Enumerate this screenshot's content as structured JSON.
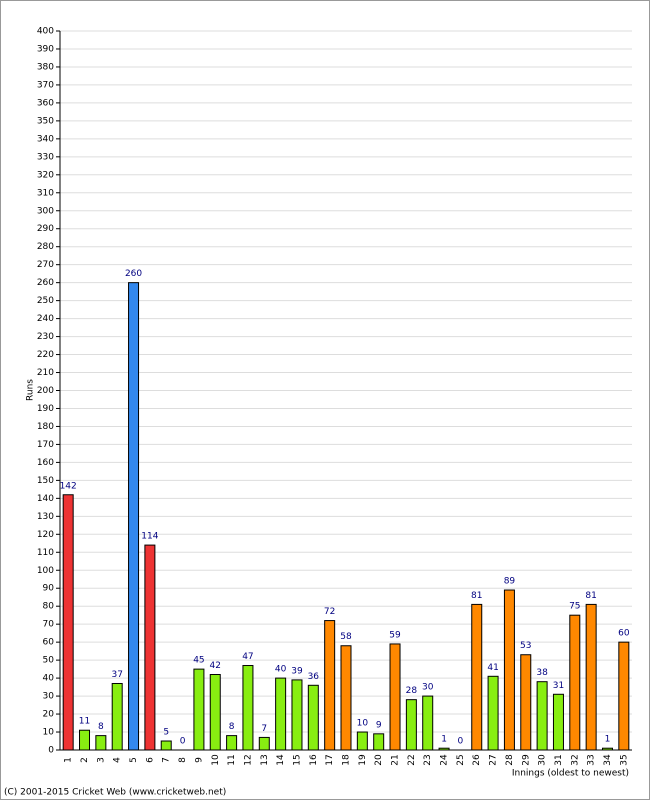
{
  "chart_data": {
    "type": "bar",
    "y_label": "Runs",
    "x_label": "Innings (oldest to newest)",
    "credit": "(C) 2001-2015 Cricket Web (www.cricketweb.net)",
    "categories": [
      "1",
      "2",
      "3",
      "4",
      "5",
      "6",
      "7",
      "8",
      "9",
      "10",
      "11",
      "12",
      "13",
      "14",
      "15",
      "16",
      "17",
      "18",
      "19",
      "20",
      "21",
      "22",
      "23",
      "24",
      "25",
      "26",
      "27",
      "28",
      "29",
      "30",
      "31",
      "32",
      "33",
      "34",
      "35"
    ],
    "values": [
      142,
      11,
      8,
      37,
      260,
      114,
      5,
      0,
      45,
      42,
      8,
      47,
      7,
      40,
      39,
      36,
      72,
      58,
      10,
      9,
      59,
      28,
      30,
      1,
      0,
      81,
      41,
      89,
      53,
      38,
      31,
      75,
      81,
      1,
      60
    ],
    "colors": [
      "#ee3333",
      "#88ee11",
      "#88ee11",
      "#88ee11",
      "#3388ee",
      "#ee3333",
      "#88ee11",
      "#88ee11",
      "#88ee11",
      "#88ee11",
      "#88ee11",
      "#88ee11",
      "#88ee11",
      "#88ee11",
      "#88ee11",
      "#88ee11",
      "#ff8800",
      "#ff8800",
      "#88ee11",
      "#88ee11",
      "#ff8800",
      "#88ee11",
      "#88ee11",
      "#88ee11",
      "#88ee11",
      "#ff8800",
      "#88ee11",
      "#ff8800",
      "#ff8800",
      "#88ee11",
      "#88ee11",
      "#ff8800",
      "#ff8800",
      "#88ee11",
      "#ff8800"
    ],
    "ylim": [
      0,
      400
    ],
    "yticks": [
      0,
      10,
      20,
      30,
      40,
      50,
      60,
      70,
      80,
      90,
      100,
      110,
      120,
      130,
      140,
      150,
      160,
      170,
      180,
      190,
      200,
      210,
      220,
      230,
      240,
      250,
      260,
      270,
      280,
      290,
      300,
      310,
      320,
      330,
      340,
      350,
      360,
      370,
      380,
      390,
      400
    ],
    "grid": true
  }
}
